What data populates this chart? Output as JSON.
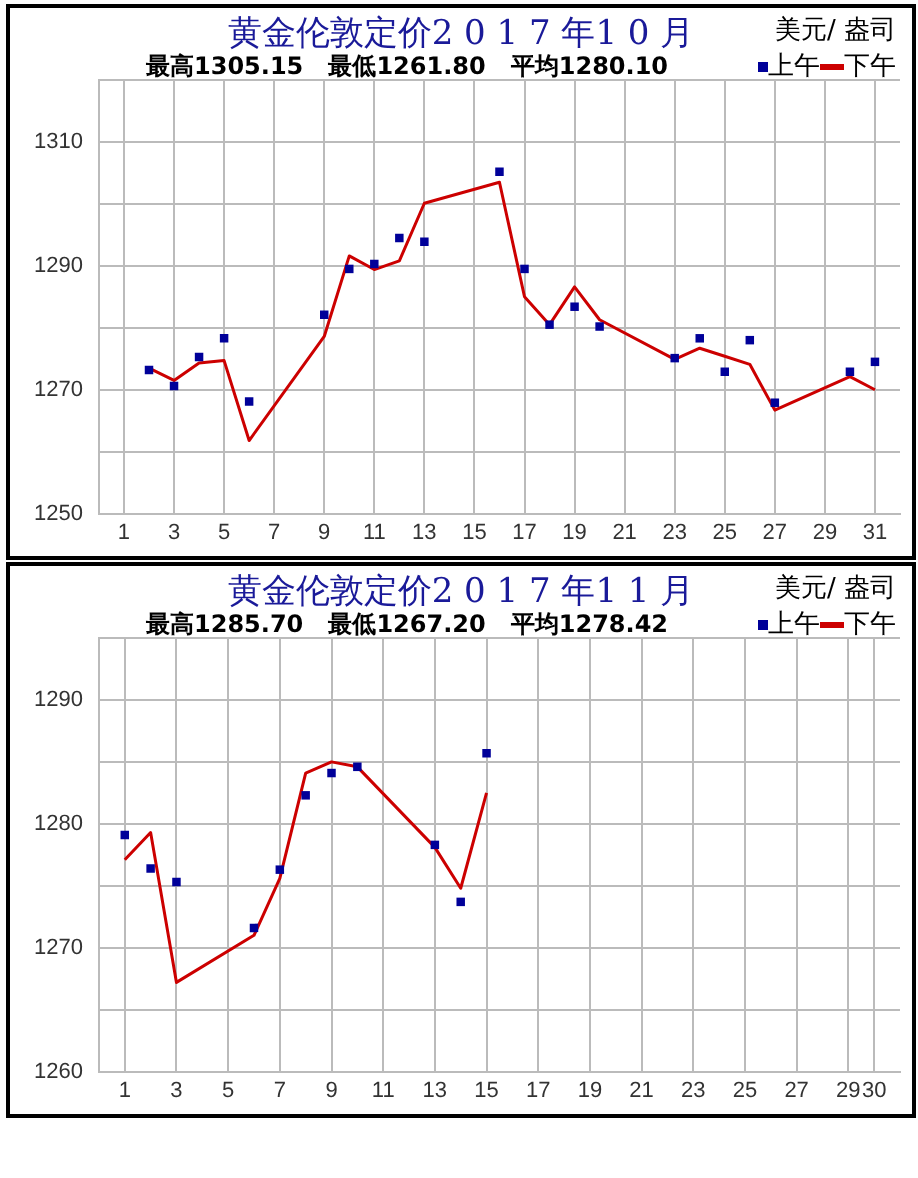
{
  "chart_data": [
    {
      "type": "line",
      "title": "黄金伦敦定价2 0 1 7 年1 0 月",
      "annotations": [
        "美元/ 盎司",
        "最高1305.15   最低1261.80   平均1280.10"
      ],
      "xlim": [
        0,
        32
      ],
      "xticks": [
        1,
        3,
        5,
        7,
        9,
        11,
        13,
        15,
        17,
        19,
        21,
        23,
        25,
        27,
        29,
        31
      ],
      "ylim": [
        1250,
        1320
      ],
      "yticks": [
        1250,
        {
          "value": 1260,
          "label": null
        },
        1270,
        {
          "value": 1280,
          "label": null
        },
        1290,
        {
          "value": 1300,
          "label": null
        },
        1310,
        {
          "value": 1320,
          "label": null
        }
      ],
      "grid": true,
      "legend": "top right",
      "series": [
        {
          "name": "上午",
          "type": "scatter",
          "marker": "square",
          "color": "#000099",
          "x": [
            2,
            3,
            4,
            5,
            6,
            9,
            10,
            11,
            12,
            13,
            16,
            17,
            18,
            19,
            20,
            23,
            24,
            25,
            26,
            27,
            30,
            31
          ],
          "values": [
            1273.2,
            1270.6,
            1275.3,
            1278.3,
            1268.1,
            1282.1,
            1289.5,
            1290.3,
            1294.5,
            1293.9,
            1305.2,
            1289.5,
            1280.5,
            1283.4,
            1280.2,
            1275.1,
            1278.3,
            1272.9,
            1278.0,
            1267.9,
            1272.9,
            1274.5
          ]
        },
        {
          "name": "下午",
          "marker": "none",
          "color": "#cc0000",
          "x": [
            2,
            3,
            4,
            5,
            6,
            9,
            10,
            11,
            12,
            13,
            16,
            17,
            18,
            19,
            20,
            23,
            24,
            25,
            26,
            27,
            30,
            31
          ],
          "values": [
            1273.5,
            1271.5,
            1274.3,
            1274.7,
            1261.8,
            1278.6,
            1291.6,
            1289.4,
            1290.8,
            1300.1,
            1303.5,
            1285.0,
            1280.5,
            1286.6,
            1281.3,
            1274.9,
            1276.7,
            1275.4,
            1274.1,
            1266.7,
            1272.1,
            1270.0
          ]
        }
      ]
    },
    {
      "type": "line",
      "title": "黄金伦敦定价2 0 1 7 年1 1 月",
      "annotations": [
        "美元/ 盎司",
        "最高1285.70   最低1267.20   平均1278.42"
      ],
      "xlim": [
        0,
        31
      ],
      "xticks": [
        1,
        3,
        5,
        7,
        9,
        11,
        13,
        15,
        17,
        19,
        21,
        23,
        25,
        27,
        29,
        30
      ],
      "ylim": [
        1260,
        1295
      ],
      "yticks": [
        1260,
        {
          "value": 1265,
          "label": null
        },
        1270,
        {
          "value": 1275,
          "label": null
        },
        1280,
        {
          "value": 1285,
          "label": null
        },
        1290,
        {
          "value": 1295,
          "label": null
        }
      ],
      "grid": true,
      "legend": "top right",
      "series": [
        {
          "name": "上午",
          "type": "scatter",
          "marker": "square",
          "color": "#000099",
          "x": [
            1,
            2,
            3,
            6,
            7,
            8,
            9,
            10,
            13,
            14,
            15
          ],
          "values": [
            1279.1,
            1276.4,
            1275.3,
            1271.6,
            1276.3,
            1282.3,
            1284.1,
            1284.6,
            1278.3,
            1273.7,
            1285.7
          ]
        },
        {
          "name": "下午",
          "marker": "none",
          "color": "#cc0000",
          "x": [
            1,
            2,
            3,
            6,
            7,
            8,
            9,
            10,
            13,
            14,
            15
          ],
          "values": [
            1277.1,
            1279.3,
            1267.2,
            1271.0,
            1275.6,
            1284.1,
            1285.0,
            1284.6,
            1278.1,
            1274.8,
            1282.5
          ]
        }
      ]
    }
  ]
}
